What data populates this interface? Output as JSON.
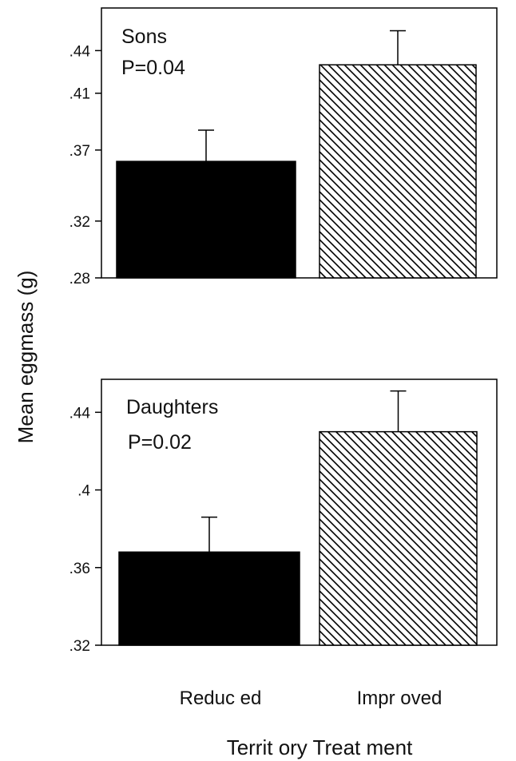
{
  "chart_data": [
    {
      "type": "bar",
      "panel_label": "Sons",
      "p_value_text": "P=0.04",
      "categories": [
        "Reduced",
        "Improved"
      ],
      "values": [
        0.362,
        0.43
      ],
      "error_upper": [
        0.384,
        0.454
      ],
      "bar_fills": [
        "solid-black",
        "diagonal-hatch"
      ],
      "ylim": [
        0.28,
        0.47
      ],
      "ticks": [
        0.28,
        0.32,
        0.37,
        0.41,
        0.44
      ],
      "tick_labels": [
        ".28",
        ".32",
        ".37",
        ".41",
        ".44"
      ]
    },
    {
      "type": "bar",
      "panel_label": "Daughters",
      "p_value_text": "P=0.02",
      "categories": [
        "Reduced",
        "Improved"
      ],
      "values": [
        0.368,
        0.43
      ],
      "error_upper": [
        0.386,
        0.451
      ],
      "bar_fills": [
        "solid-black",
        "diagonal-hatch"
      ],
      "ylim": [
        0.32,
        0.457
      ],
      "ticks": [
        0.32,
        0.36,
        0.4,
        0.44
      ],
      "tick_labels": [
        ".32",
        ".36",
        ".4",
        ".44"
      ]
    }
  ],
  "ylabel": "Mean eggmass (g)",
  "xlabel": "Territ ory Treat ment",
  "x_categories": [
    "Reduc ed",
    "Impr oved"
  ],
  "colors": {
    "solid_bar": "#000000",
    "hatch": "#000000",
    "frame": "#000000"
  }
}
